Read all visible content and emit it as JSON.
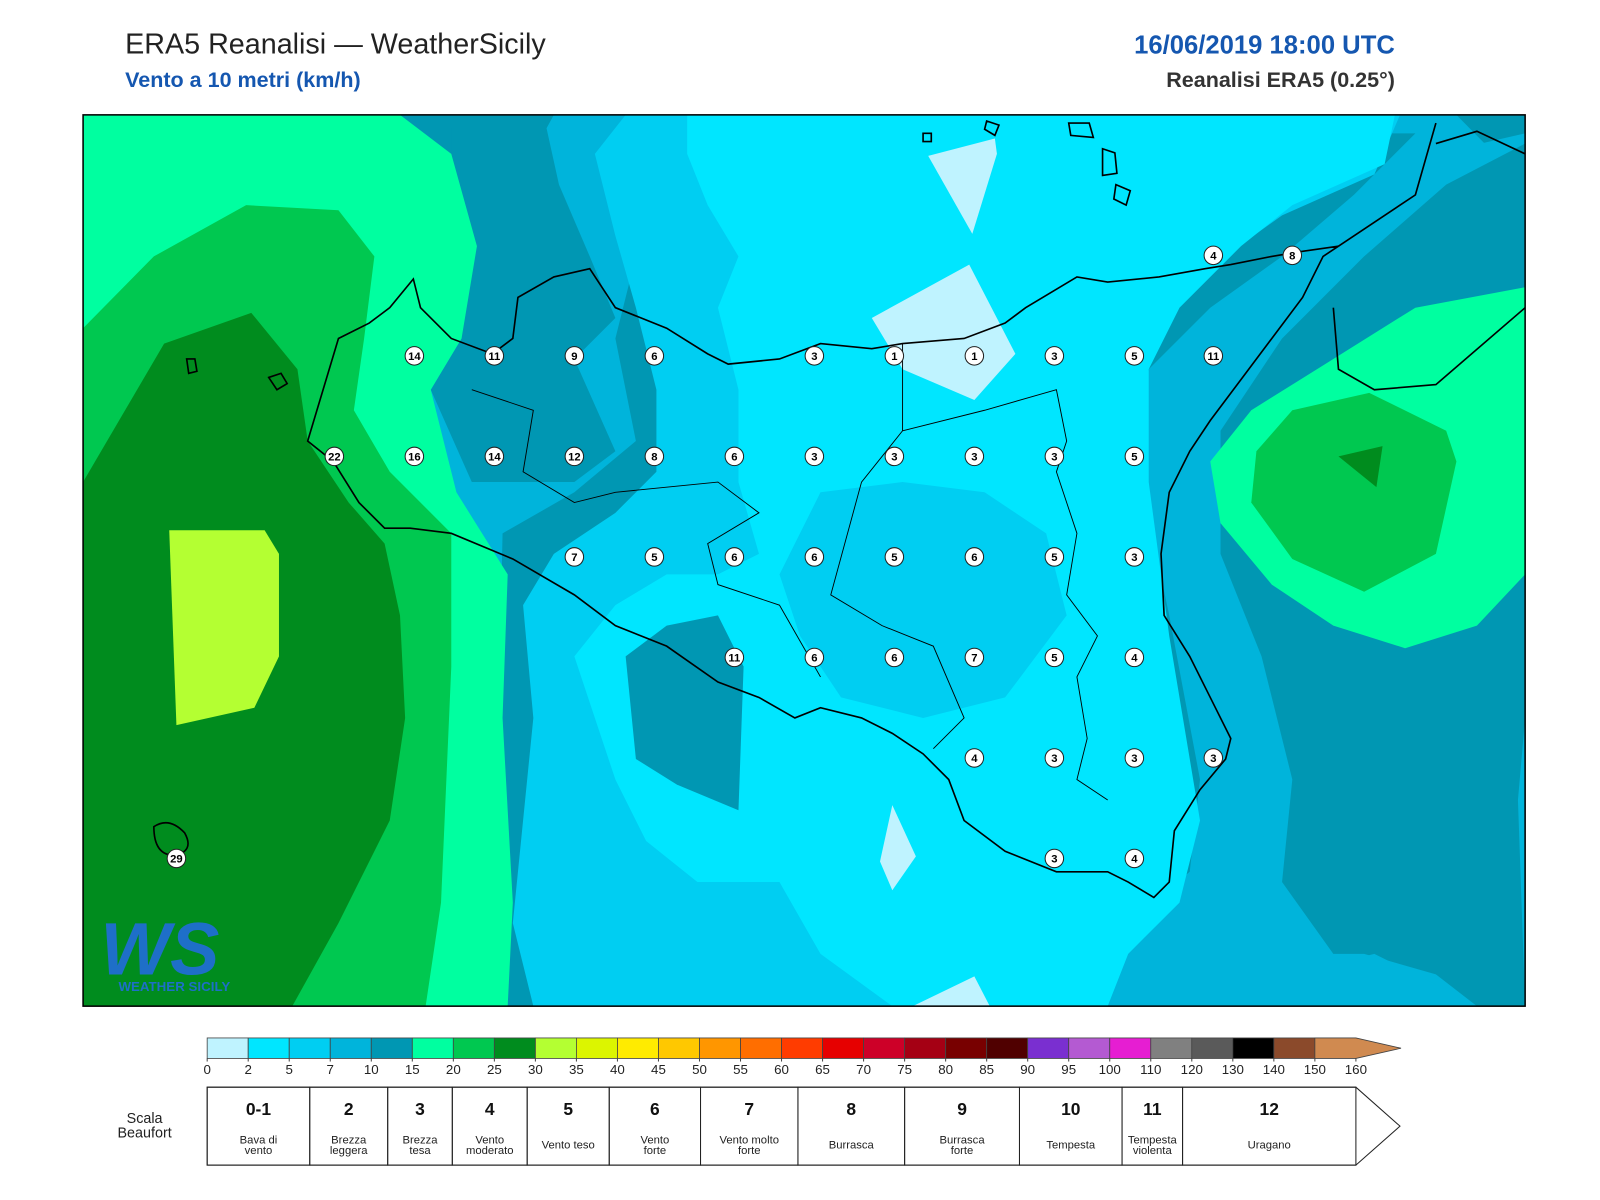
{
  "header": {
    "title": "ERA5 Reanalisi — WeatherSicily",
    "subtitle": "Vento a 10 metri (km/h)",
    "date": "16/06/2019 18:00 UTC",
    "source": "Reanalisi ERA5 (0.25°)"
  },
  "map": {
    "stations": [
      4,
      8,
      14,
      11,
      9,
      6,
      3,
      1,
      1,
      3,
      5,
      11,
      22,
      16,
      14,
      12,
      8,
      6,
      3,
      3,
      3,
      3,
      5,
      7,
      5,
      6,
      6,
      5,
      6,
      5,
      3,
      11,
      6,
      6,
      7,
      5,
      4,
      4,
      3,
      3,
      3,
      29,
      3,
      4
    ]
  },
  "logo": {
    "mark": "WS",
    "name": "WEATHER SICILY"
  },
  "colorbar": {
    "ticks": [
      0,
      2,
      5,
      7,
      10,
      15,
      20,
      25,
      30,
      35,
      40,
      45,
      50,
      55,
      60,
      65,
      70,
      75,
      80,
      85,
      90,
      95,
      100,
      110,
      120,
      130,
      140,
      150,
      160
    ],
    "colors": [
      "#bff3ff",
      "#00e6ff",
      "#00cef2",
      "#00b4db",
      "#0097b3",
      "#00ffa0",
      "#00c850",
      "#008c1e",
      "#b4ff32",
      "#dcf500",
      "#ffeb00",
      "#ffc800",
      "#ff9600",
      "#ff6e00",
      "#ff3c00",
      "#e60000",
      "#cd0028",
      "#a50014",
      "#780000",
      "#500000",
      "#7a2fd0",
      "#b45ad2",
      "#e61ed2",
      "#808080",
      "#5a5a5a",
      "#000000",
      "#8b4a2b",
      "#d08a50"
    ]
  },
  "beaufort": {
    "label": [
      "Scala",
      "Beaufort"
    ],
    "classes": [
      {
        "force": "0-1",
        "description": [
          "Bava di",
          "vento"
        ]
      },
      {
        "force": 2,
        "description": [
          "Brezza",
          "leggera"
        ]
      },
      {
        "force": 3,
        "description": [
          "Brezza",
          "tesa"
        ]
      },
      {
        "force": 4,
        "description": [
          "Vento",
          "moderato"
        ]
      },
      {
        "force": 5,
        "description": [
          "Vento teso"
        ]
      },
      {
        "force": 6,
        "description": [
          "Vento",
          "forte"
        ]
      },
      {
        "force": 7,
        "description": [
          "Vento molto",
          "forte"
        ]
      },
      {
        "force": 8,
        "description": [
          "Burrasca"
        ]
      },
      {
        "force": 9,
        "description": [
          "Burrasca",
          "forte"
        ]
      },
      {
        "force": 10,
        "description": [
          "Tempesta"
        ]
      },
      {
        "force": 11,
        "description": [
          "Tempesta",
          "violenta"
        ]
      },
      {
        "force": 12,
        "description": [
          "Uragano"
        ]
      }
    ]
  }
}
